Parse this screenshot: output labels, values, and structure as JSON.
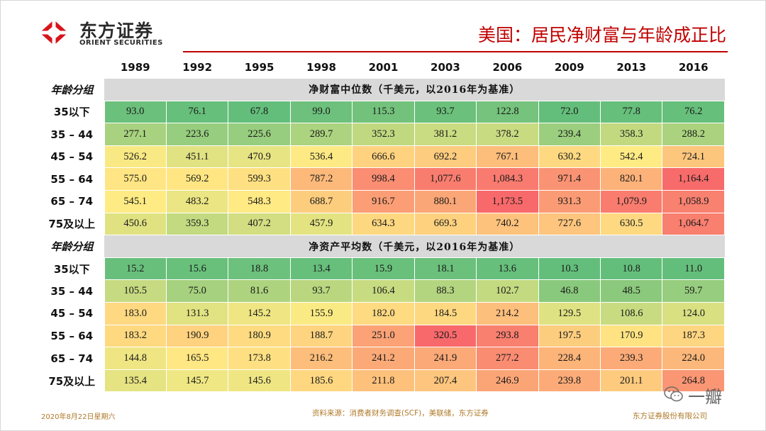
{
  "header": {
    "brand_cn": "东方证券",
    "brand_en": "ORIENT SECURITIES",
    "title": "美国：居民净财富与年龄成正比"
  },
  "footer": {
    "date": "2020年8月22日星期六",
    "source": "资料来源：消费者财务调查(SCF)，美联储，东方证券",
    "company": "东方证券股份有限公司"
  },
  "watermark": {
    "text": "一瓣"
  },
  "colors": {
    "accent_red": "#c00000",
    "scale_low": "#63be7b",
    "scale_mid": "#ffeb84",
    "scale_high": "#f8696b",
    "section_bg": "#d9d9d9"
  },
  "chart_data": {
    "type": "heatmap",
    "years": [
      "1989",
      "1992",
      "1995",
      "1998",
      "2001",
      "2003",
      "2006",
      "2009",
      "2013",
      "2016"
    ],
    "tables": [
      {
        "group_label": "年龄分组",
        "section_title": "净财富中位数（千美元，以2016年为基准）",
        "rows": [
          {
            "label": "35以下",
            "values": [
              "93.0",
              "76.1",
              "67.8",
              "99.0",
              "115.3",
              "93.7",
              "122.8",
              "72.0",
              "77.8",
              "76.2"
            ]
          },
          {
            "label": "35 – 44",
            "values": [
              "277.1",
              "223.6",
              "225.6",
              "289.7",
              "352.3",
              "381.2",
              "378.2",
              "239.4",
              "358.3",
              "288.2"
            ]
          },
          {
            "label": "45 – 54",
            "values": [
              "526.2",
              "451.1",
              "470.9",
              "536.4",
              "666.6",
              "692.2",
              "767.1",
              "630.2",
              "542.4",
              "724.1"
            ]
          },
          {
            "label": "55 – 64",
            "values": [
              "575.0",
              "569.2",
              "599.3",
              "787.2",
              "998.4",
              "1,077.6",
              "1,084.3",
              "971.4",
              "820.1",
              "1,164.4"
            ]
          },
          {
            "label": "65 – 74",
            "values": [
              "545.1",
              "483.2",
              "548.3",
              "688.7",
              "916.7",
              "880.1",
              "1,173.5",
              "931.3",
              "1,079.9",
              "1,058.9"
            ]
          },
          {
            "label": "75及以上",
            "values": [
              "450.6",
              "359.3",
              "407.2",
              "457.9",
              "634.3",
              "669.3",
              "740.2",
              "727.6",
              "630.5",
              "1,064.7"
            ]
          }
        ]
      },
      {
        "group_label": "年龄分组",
        "section_title": "净资产平均数（千美元，以2016年为基准）",
        "rows": [
          {
            "label": "35以下",
            "values": [
              "15.2",
              "15.6",
              "18.8",
              "13.4",
              "15.9",
              "18.1",
              "13.6",
              "10.3",
              "10.8",
              "11.0"
            ]
          },
          {
            "label": "35 – 44",
            "values": [
              "105.5",
              "75.0",
              "81.6",
              "93.7",
              "106.4",
              "88.3",
              "102.7",
              "46.8",
              "48.5",
              "59.7"
            ]
          },
          {
            "label": "45 – 54",
            "values": [
              "183.0",
              "131.3",
              "145.2",
              "155.9",
              "182.0",
              "184.5",
              "214.2",
              "129.5",
              "108.6",
              "124.0"
            ]
          },
          {
            "label": "55 – 64",
            "values": [
              "183.2",
              "190.9",
              "180.9",
              "188.7",
              "251.0",
              "320.5",
              "293.8",
              "197.5",
              "170.9",
              "187.3"
            ]
          },
          {
            "label": "65 – 74",
            "values": [
              "144.8",
              "165.5",
              "173.8",
              "216.2",
              "241.2",
              "241.9",
              "277.2",
              "228.4",
              "239.3",
              "224.0"
            ]
          },
          {
            "label": "75及以上",
            "values": [
              "135.4",
              "145.7",
              "145.6",
              "185.6",
              "211.8",
              "207.4",
              "246.9",
              "239.8",
              "201.1",
              "264.8"
            ]
          }
        ]
      }
    ]
  }
}
